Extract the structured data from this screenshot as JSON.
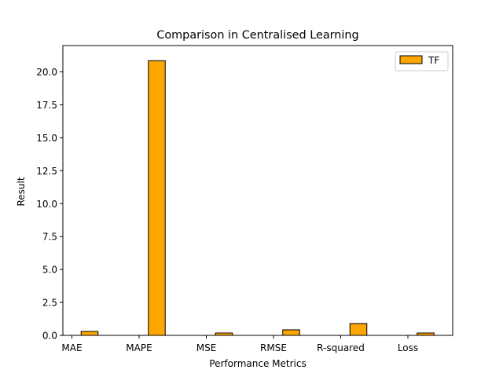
{
  "chart_data": {
    "type": "bar",
    "title": "Comparison in Centralised Learning",
    "xlabel": "Performance Metrics",
    "ylabel": "Result",
    "categories": [
      "MAE",
      "MAPE",
      "MSE",
      "RMSE",
      "R-squared",
      "Loss"
    ],
    "series": [
      {
        "name": "TF",
        "color": "#ffa500",
        "values": [
          0.3,
          20.85,
          0.18,
          0.42,
          0.9,
          0.18
        ]
      }
    ],
    "ylim": [
      0,
      22
    ],
    "yticks": [
      0.0,
      2.5,
      5.0,
      7.5,
      10.0,
      12.5,
      15.0,
      17.5,
      20.0
    ],
    "ytick_labels": [
      "0.0",
      "2.5",
      "5.0",
      "7.5",
      "10.0",
      "12.5",
      "15.0",
      "17.5",
      "20.0"
    ],
    "grid": false,
    "legend_position": "top-right"
  }
}
